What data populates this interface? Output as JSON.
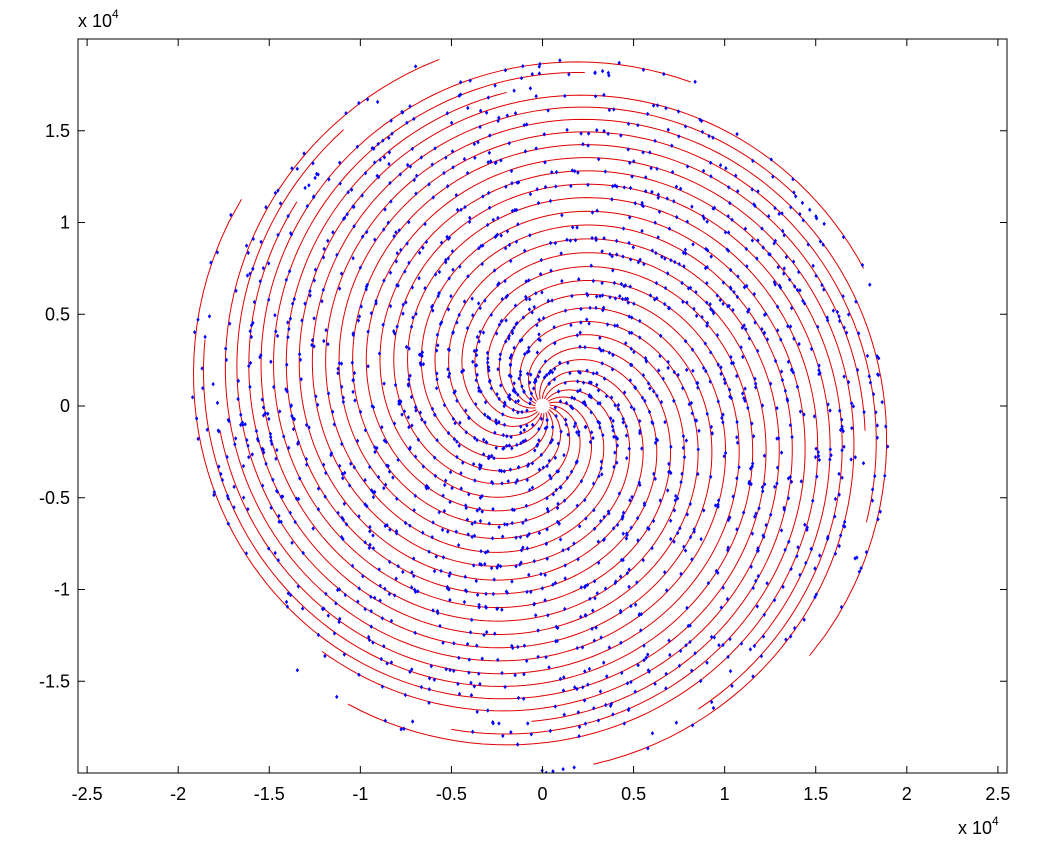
{
  "chart_data": {
    "type": "scatter",
    "title": "",
    "xlabel": "",
    "ylabel": "",
    "x_exponent_label": {
      "main": "x 10",
      "exp": "4"
    },
    "y_exponent_label": {
      "main": "x 10",
      "exp": "4"
    },
    "xlim": [
      -2.55,
      2.55
    ],
    "ylim": [
      -2.0,
      2.0
    ],
    "x_ticks": [
      -2.5,
      -2,
      -1.5,
      -1,
      -0.5,
      0,
      0.5,
      1,
      1.5,
      2,
      2.5
    ],
    "x_tick_labels": [
      "-2.5",
      "-2",
      "-1.5",
      "-1",
      "-0.5",
      "0",
      "0.5",
      "1",
      "1.5",
      "2",
      "2.5"
    ],
    "y_ticks": [
      -1.5,
      -1,
      -0.5,
      0,
      0.5,
      1,
      1.5
    ],
    "y_tick_labels": [
      "-1.5",
      "-1",
      "-0.5",
      "0",
      "0.5",
      "1",
      "1.5"
    ],
    "grid": false,
    "box": true,
    "spiral_model": {
      "description_units": "data units (x10^4)",
      "arms": 21,
      "r_max": 2.0,
      "r_min": 0.04,
      "rotations": 1.3,
      "sense": "counterclockwise-inward"
    },
    "series": [
      {
        "kind": "curve",
        "color": "#e00000",
        "count": 21
      },
      {
        "kind": "points",
        "marker": "diamond",
        "color": "#0000ff",
        "approx_count": 2000
      }
    ]
  }
}
